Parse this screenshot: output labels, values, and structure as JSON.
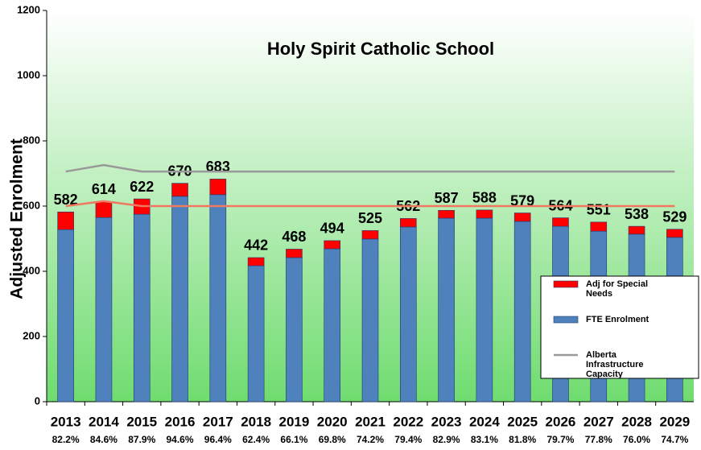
{
  "chart_data": {
    "type": "bar",
    "title": "Holy Spirit Catholic School",
    "y_label": "Adjusted Enrolment",
    "categories": [
      "2013",
      "2014",
      "2015",
      "2016",
      "2017",
      "2018",
      "2019",
      "2020",
      "2021",
      "2022",
      "2023",
      "2024",
      "2025",
      "2026",
      "2027",
      "2028",
      "2029"
    ],
    "percent_labels": [
      "82.2%",
      "84.6%",
      "87.9%",
      "94.6%",
      "96.4%",
      "62.4%",
      "66.1%",
      "69.8%",
      "74.2%",
      "79.4%",
      "82.9%",
      "83.1%",
      "81.8%",
      "79.7%",
      "77.8%",
      "76.0%",
      "74.7%"
    ],
    "total_labels": [
      "582",
      "614",
      "622",
      "670",
      "683",
      "442",
      "468",
      "494",
      "525",
      "562",
      "587",
      "588",
      "579",
      "564",
      "551",
      "538",
      "529"
    ],
    "series": [
      {
        "name": "FTE Enrolment",
        "kind": "bar",
        "color": "#4f81bd",
        "values": [
          528,
          565,
          575,
          630,
          635,
          417,
          442,
          469,
          499,
          536,
          563,
          563,
          553,
          538,
          523,
          514,
          504
        ]
      },
      {
        "name": "Adj for Special Needs",
        "kind": "bar",
        "color": "#ff0000",
        "values": [
          54,
          49,
          47,
          40,
          48,
          25,
          26,
          25,
          26,
          26,
          24,
          25,
          26,
          26,
          28,
          24,
          25
        ]
      },
      {
        "name": "Alberta Infrastructure Capacity",
        "kind": "line",
        "color": "#999999",
        "values": [
          706,
          726,
          706,
          706,
          706,
          706,
          706,
          706,
          706,
          706,
          706,
          706,
          706,
          706,
          706,
          706,
          706
        ]
      },
      {
        "kind": "line",
        "color": "#f07860",
        "values": [
          600,
          615,
          600,
          600,
          600,
          600,
          600,
          600,
          600,
          600,
          600,
          600,
          600,
          600,
          600,
          600,
          600
        ]
      }
    ],
    "legend_order": [
      1,
      0,
      2
    ],
    "ylim": [
      0,
      1200
    ],
    "yticks": [
      0,
      200,
      400,
      600,
      800,
      1000,
      1200
    ]
  }
}
